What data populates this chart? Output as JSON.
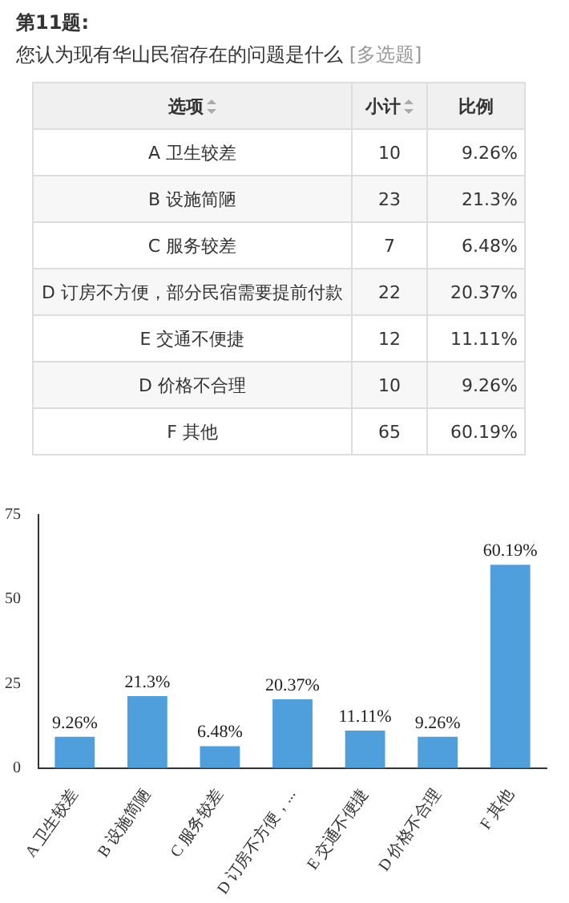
{
  "chart_data": [
    {
      "type": "other",
      "title": "第11题:",
      "subtitle": "您认为现有华山民宿存在的问题是什么  [多选题]",
      "xlabel": "选项",
      "categories": [
        "A 卫生较差",
        "B 设施简陋",
        "C 服务较差",
        "D 订房不方便，部分民宿需要提前付款",
        "E 交通不便捷",
        "D 价格不合理",
        "F 其他"
      ],
      "series": [
        {
          "name": "小计",
          "values": [
            10,
            23,
            7,
            22,
            12,
            10,
            65
          ],
          "value_labels": [
            "10",
            "23",
            "7",
            "22",
            "12",
            "10",
            "65"
          ]
        },
        {
          "name": "比例",
          "values": [
            9.26,
            21.3,
            6.48,
            20.37,
            11.11,
            9.26,
            60.19
          ],
          "value_labels": [
            "9.26%",
            "21.3%",
            "6.48%",
            "20.37%",
            "11.11%",
            "9.26%",
            "60.19%"
          ]
        }
      ]
    },
    {
      "type": "bar",
      "categories": [
        "A 卫生较差",
        "B 设施简陋",
        "C 服务较差",
        "D 订房不方便，...",
        "E 交通不便捷",
        "D 价格不合理",
        "F 其他"
      ],
      "values": [
        9.26,
        21.3,
        6.48,
        20.37,
        11.11,
        9.26,
        60.19
      ],
      "color": "#4e9fdb",
      "value_labels": [
        "9.26%",
        "21.3%",
        "6.48%",
        "20.37%",
        "11.11%",
        "9.26%",
        "60.19%"
      ],
      "ylim": [
        0,
        75
      ],
      "yticks": [
        0,
        25,
        50,
        75
      ],
      "grid": false,
      "legend": false
    }
  ]
}
